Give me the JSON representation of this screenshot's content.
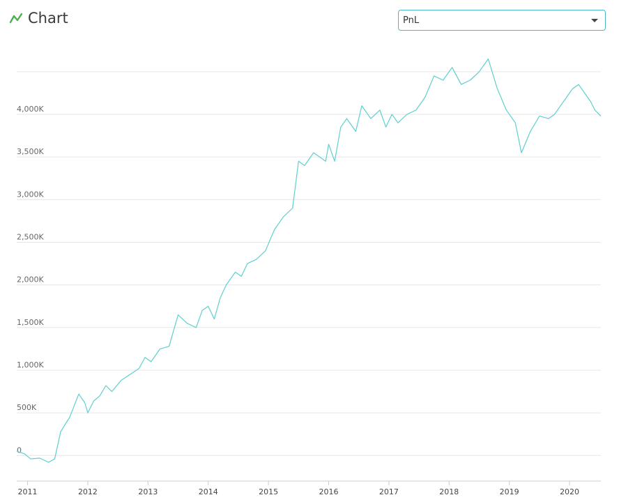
{
  "header": {
    "title": "Chart",
    "icon": "line-chart-icon",
    "accent_color": "#4caf50"
  },
  "selector": {
    "value": "PnL",
    "icon": "chevron-down-icon",
    "border_color": "#4ab8c4"
  },
  "chart_data": {
    "type": "line",
    "title": "",
    "xlabel": "",
    "ylabel": "",
    "line_color": "#5ecfcf",
    "grid": true,
    "xlim": [
      2010.82,
      2020.52
    ],
    "ylim": [
      -300,
      4850
    ],
    "yticks": [
      0,
      500,
      1000,
      1500,
      2000,
      2500,
      3000,
      3500,
      4000
    ],
    "ytick_labels": [
      "0",
      "500K",
      "1,000K",
      "1,500K",
      "2,000K",
      "2,500K",
      "3,000K",
      "3,500K",
      "4,000K"
    ],
    "xticks": [
      2011,
      2012,
      2013,
      2014,
      2015,
      2016,
      2017,
      2018,
      2019,
      2020
    ],
    "xtick_labels": [
      "2011",
      "2012",
      "2013",
      "2014",
      "2015",
      "2016",
      "2017",
      "2018",
      "2019",
      "2020"
    ],
    "series": [
      {
        "x": [
          2010.82,
          2010.95,
          2011.05,
          2011.2,
          2011.35,
          2011.45,
          2011.55,
          2011.7,
          2011.85,
          2011.95,
          2012.0,
          2012.1,
          2012.2,
          2012.3,
          2012.4,
          2012.55,
          2012.7,
          2012.85,
          2012.95,
          2013.05,
          2013.2,
          2013.35,
          2013.5,
          2013.65,
          2013.8,
          2013.9,
          2014.0,
          2014.1,
          2014.2,
          2014.3,
          2014.45,
          2014.55,
          2014.65,
          2014.8,
          2014.95,
          2015.1,
          2015.25,
          2015.4,
          2015.5,
          2015.6,
          2015.75,
          2015.95,
          2016.0,
          2016.1,
          2016.2,
          2016.3,
          2016.45,
          2016.55,
          2016.7,
          2016.85,
          2016.95,
          2017.05,
          2017.15,
          2017.3,
          2017.45,
          2017.6,
          2017.75,
          2017.9,
          2018.05,
          2018.2,
          2018.35,
          2018.5,
          2018.65,
          2018.8,
          2018.95,
          2019.1,
          2019.2,
          2019.35,
          2019.5,
          2019.65,
          2019.75,
          2019.85,
          2019.95,
          2020.05,
          2020.15,
          2020.25,
          2020.35,
          2020.42,
          2020.52
        ],
        "y": [
          50,
          20,
          -40,
          -30,
          -80,
          -40,
          280,
          450,
          720,
          620,
          500,
          640,
          700,
          820,
          750,
          880,
          950,
          1020,
          1150,
          1100,
          1250,
          1280,
          1650,
          1550,
          1500,
          1700,
          1750,
          1600,
          1850,
          2000,
          2150,
          2100,
          2250,
          2300,
          2400,
          2650,
          2800,
          2900,
          3450,
          3400,
          3550,
          3450,
          3650,
          3450,
          3850,
          3950,
          3800,
          4100,
          3950,
          4050,
          3850,
          4000,
          3900,
          4000,
          4050,
          4200,
          4450,
          4400,
          4550,
          4350,
          4400,
          4500,
          4650,
          4300,
          4050,
          3900,
          3550,
          3800,
          3980,
          3950,
          4000,
          4100,
          4200,
          4300,
          4350,
          4250,
          4150,
          4050,
          3980
        ]
      }
    ]
  }
}
